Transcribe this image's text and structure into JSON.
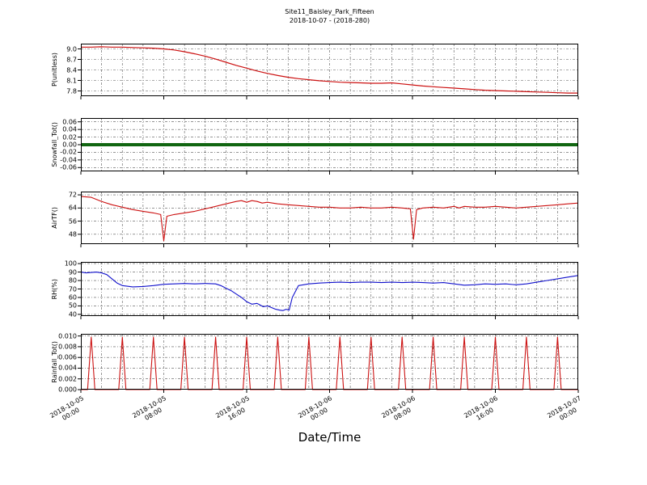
{
  "figure": {
    "title": "Site11_Baisley_Park_Fifteen",
    "subtitle": "2018-10-07 - (2018-280)",
    "xlabel": "Date/Time",
    "background": "#ffffff",
    "grid_color": "#555555",
    "grid_style": "dash-dot"
  },
  "x_axis": {
    "range_hours": [
      0,
      48
    ],
    "grid_step_hours": 2,
    "major_tick_hours": [
      0,
      8,
      16,
      24,
      32,
      40,
      48
    ],
    "major_tick_labels": [
      "2018-10-05\n00:00",
      "2018-10-05\n08:00",
      "2018-10-05\n16:00",
      "2018-10-06\n00:00",
      "2018-10-06\n08:00",
      "2018-10-06\n16:00",
      "2018-10-07\n00:00"
    ]
  },
  "chart_data": [
    {
      "id": "p",
      "type": "line",
      "ylabel": "P(unitless)",
      "color": "#cc1111",
      "line_width": 1.2,
      "ylim": [
        7.65,
        9.15
      ],
      "yticks": [
        7.8,
        8.1,
        8.4,
        8.7,
        9.0
      ],
      "ytick_labels": [
        "7.8",
        "8.1",
        "8.4",
        "8.7",
        "9.0"
      ],
      "x": [
        0,
        1,
        2,
        3,
        4,
        5,
        6,
        7,
        8,
        9,
        10,
        11,
        12,
        13,
        14,
        15,
        16,
        17,
        18,
        19,
        20,
        21,
        22,
        23,
        24,
        25,
        26,
        27,
        28,
        29,
        30,
        31,
        32,
        33,
        34,
        35,
        36,
        37,
        38,
        39,
        40,
        41,
        42,
        43,
        44,
        45,
        46,
        47,
        48
      ],
      "values": [
        9.05,
        9.05,
        9.06,
        9.05,
        9.05,
        9.04,
        9.03,
        9.02,
        9.0,
        8.97,
        8.92,
        8.86,
        8.79,
        8.71,
        8.62,
        8.53,
        8.45,
        8.37,
        8.3,
        8.24,
        8.19,
        8.15,
        8.12,
        8.09,
        8.07,
        8.05,
        8.04,
        8.03,
        8.02,
        8.02,
        8.03,
        8.0,
        7.97,
        7.94,
        7.92,
        7.9,
        7.88,
        7.86,
        7.84,
        7.82,
        7.81,
        7.8,
        7.79,
        7.78,
        7.77,
        7.76,
        7.75,
        7.74,
        7.74
      ]
    },
    {
      "id": "snowfall",
      "type": "line",
      "ylabel": "Snowfall_Tot()",
      "color": "#116611",
      "line_width": 4,
      "ylim": [
        -0.07,
        0.07
      ],
      "yticks": [
        -0.06,
        -0.04,
        -0.02,
        0.0,
        0.02,
        0.04,
        0.06
      ],
      "ytick_labels": [
        "-0.06",
        "-0.04",
        "-0.02",
        "0.00",
        "0.02",
        "0.04",
        "0.06"
      ],
      "x": [
        0,
        48
      ],
      "values": [
        0.0,
        0.0
      ]
    },
    {
      "id": "airtf",
      "type": "line",
      "ylabel": "AirTF()",
      "color": "#cc1111",
      "line_width": 1.1,
      "ylim": [
        42,
        74
      ],
      "yticks": [
        48,
        56,
        64,
        72
      ],
      "ytick_labels": [
        "48",
        "56",
        "64",
        "72"
      ],
      "x": [
        0,
        1,
        2,
        3,
        4,
        5,
        6,
        7,
        7.7,
        8,
        8.3,
        9,
        10,
        11,
        12,
        13,
        14,
        15,
        15.5,
        16,
        16.5,
        17,
        17.5,
        18,
        19,
        20,
        21,
        22,
        23,
        24,
        25,
        26,
        27,
        28,
        29,
        30,
        31,
        31.8,
        32.1,
        32.4,
        33,
        34,
        35,
        36,
        36.5,
        37,
        38,
        39,
        40,
        41,
        42,
        43,
        44,
        45,
        46,
        47,
        48
      ],
      "values": [
        71,
        70.5,
        68,
        66,
        64.5,
        63,
        62,
        61,
        60,
        44,
        59,
        60,
        61,
        62,
        63.5,
        65,
        66.5,
        68,
        68.5,
        67.5,
        68.5,
        68,
        67,
        67.5,
        66.5,
        66,
        65.5,
        65,
        64.5,
        64.5,
        64,
        64,
        64.5,
        64,
        64,
        64.5,
        64,
        63.5,
        45,
        63,
        64,
        64.5,
        64,
        65,
        64,
        65,
        64.5,
        64.5,
        65,
        64.5,
        64,
        64.5,
        65,
        65.5,
        66,
        66.5,
        67
      ]
    },
    {
      "id": "rh",
      "type": "line",
      "ylabel": "RH(%)",
      "color": "#1111cc",
      "line_width": 1.1,
      "ylim": [
        38,
        102
      ],
      "yticks": [
        40,
        50,
        60,
        70,
        80,
        90,
        100
      ],
      "ytick_labels": [
        "40",
        "50",
        "60",
        "70",
        "80",
        "90",
        "100"
      ],
      "x": [
        0,
        0.5,
        1,
        1.5,
        2,
        2.5,
        3,
        3.5,
        4,
        5,
        6,
        7,
        8,
        9,
        10,
        11,
        12,
        13,
        13.5,
        14,
        14.5,
        15,
        15.5,
        16,
        16.5,
        17,
        17.3,
        17.6,
        18,
        18.4,
        18.8,
        19.2,
        19.5,
        19.8,
        20.1,
        20.4,
        21,
        22,
        23,
        24,
        25,
        26,
        27,
        28,
        29,
        30,
        31,
        32,
        33,
        34,
        35,
        36,
        37,
        38,
        39,
        40,
        41,
        42,
        43,
        44,
        45,
        46,
        47,
        48
      ],
      "values": [
        90,
        89,
        89.5,
        90,
        89,
        87,
        82,
        77,
        74,
        72.5,
        73,
        74,
        75.5,
        76,
        76.5,
        76,
        76.5,
        76,
        74,
        71,
        68,
        64,
        60,
        55,
        52,
        53,
        51,
        49,
        50,
        48,
        46,
        45,
        44.5,
        46,
        45,
        60,
        74,
        76,
        77,
        77.5,
        78,
        77.5,
        78,
        78,
        77.5,
        78,
        77.5,
        78,
        77.5,
        77,
        77.5,
        76,
        74.5,
        75,
        76,
        75.5,
        76,
        75,
        76,
        78,
        80,
        82,
        84,
        86
      ]
    },
    {
      "id": "rainfall",
      "type": "line",
      "ylabel": "Rainfall_Tot()",
      "color": "#cc1111",
      "line_width": 1.1,
      "ylim": [
        0,
        0.0104
      ],
      "yticks": [
        0.0,
        0.002,
        0.004,
        0.006,
        0.008,
        0.01
      ],
      "ytick_labels": [
        "0.000",
        "0.002",
        "0.004",
        "0.006",
        "0.008",
        "0.010"
      ],
      "x": [
        0,
        0.65,
        1,
        1.35,
        3.65,
        4,
        4.35,
        6.65,
        7,
        7.35,
        9.65,
        10,
        10.35,
        12.65,
        13,
        13.35,
        15.65,
        16,
        16.35,
        18.65,
        19,
        19.35,
        21.65,
        22,
        22.35,
        24.65,
        25,
        25.35,
        27.65,
        28,
        28.35,
        30.65,
        31,
        31.35,
        33.65,
        34,
        34.35,
        36.65,
        37,
        37.35,
        39.65,
        40,
        40.35,
        42.65,
        43,
        43.35,
        45.65,
        46,
        46.35,
        48
      ],
      "values": [
        0,
        0,
        0.0098,
        0,
        0,
        0.0098,
        0,
        0,
        0.0098,
        0,
        0,
        0.0098,
        0,
        0,
        0.0098,
        0,
        0,
        0.0098,
        0,
        0,
        0.0098,
        0,
        0,
        0.0098,
        0,
        0,
        0.0098,
        0,
        0,
        0.0098,
        0,
        0,
        0.0098,
        0,
        0,
        0.0098,
        0,
        0,
        0.0098,
        0,
        0,
        0.0098,
        0,
        0,
        0.0098,
        0,
        0,
        0.0098,
        0,
        0
      ]
    }
  ]
}
